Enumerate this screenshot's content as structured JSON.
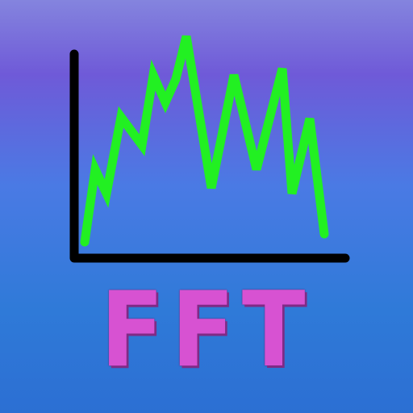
{
  "icon": {
    "label": "FFT",
    "graphic": "spectrum-graph-icon",
    "colors": {
      "background_top": "#8484de",
      "background_bottom": "#2c6fd3",
      "axes": "#000000",
      "waveform": "#22f022",
      "label": "#d752d2"
    }
  }
}
